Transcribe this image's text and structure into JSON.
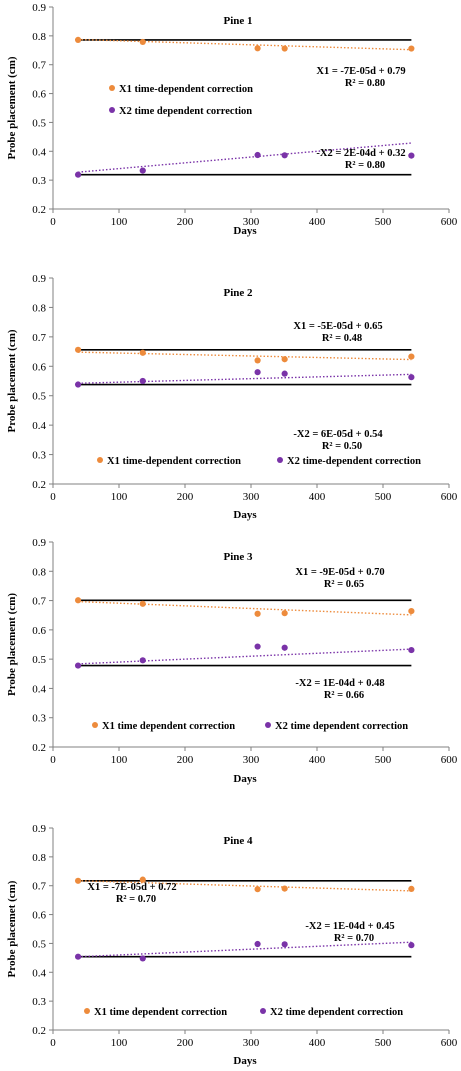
{
  "colors": {
    "x1": "#ED8B3C",
    "x2": "#7A33A8",
    "axis": "#808080",
    "ref": "#000000"
  },
  "chart_data": [
    {
      "type": "scatter",
      "title": "Pine 1",
      "xlabel": "Days",
      "ylabel": "Probe placement (cm)",
      "xlim": [
        0,
        600
      ],
      "ylim": [
        0.2,
        0.9
      ],
      "xticks": [
        "0",
        "100",
        "200",
        "300",
        "400",
        "500",
        "600"
      ],
      "yticks": [
        "0.2",
        "0.3",
        "0.4",
        "0.5",
        "0.6",
        "0.7",
        "0.8",
        "0.9"
      ],
      "x": [
        38,
        136,
        310,
        351,
        543
      ],
      "series": [
        {
          "name": "X1 time-dependent correction",
          "values": [
            0.786,
            0.779,
            0.757,
            0.756,
            0.756
          ],
          "trend": {
            "slope": -7e-05,
            "intercept": 0.79,
            "equation": "X1 = -7E-05d + 0.79",
            "r2": "R² = 0.80"
          },
          "reference": 0.786
        },
        {
          "name": "X2 time dependent correction",
          "values": [
            0.319,
            0.333,
            0.387,
            0.386,
            0.385
          ],
          "trend": {
            "slope": 0.0002,
            "intercept": 0.32,
            "equation": "-X2 = 2E-04d + 0.32",
            "r2": "R² = 0.80"
          },
          "reference": 0.319
        }
      ]
    },
    {
      "type": "scatter",
      "title": "Pine 2",
      "xlabel": "Days",
      "ylabel": "Probe placement (cm)",
      "xlim": [
        0,
        600
      ],
      "ylim": [
        0.2,
        0.9
      ],
      "xticks": [
        "0",
        "100",
        "200",
        "300",
        "400",
        "500",
        "600"
      ],
      "yticks": [
        "0.2",
        "0.3",
        "0.4",
        "0.5",
        "0.6",
        "0.7",
        "0.8",
        "0.9"
      ],
      "x": [
        38,
        136,
        310,
        351,
        543
      ],
      "series": [
        {
          "name": "X1 time-dependent correction",
          "values": [
            0.656,
            0.646,
            0.62,
            0.624,
            0.633
          ],
          "trend": {
            "slope": -5e-05,
            "intercept": 0.65,
            "equation": "X1 = -5E-05d + 0.65",
            "r2": "R² = 0.48"
          },
          "reference": 0.656
        },
        {
          "name": "X2 time-dependent correction",
          "values": [
            0.538,
            0.55,
            0.58,
            0.575,
            0.563
          ],
          "trend": {
            "slope": 6e-05,
            "intercept": 0.54,
            "equation": "-X2 = 6E-05d + 0.54",
            "r2": "R² = 0.50"
          },
          "reference": 0.538
        }
      ]
    },
    {
      "type": "scatter",
      "title": "Pine 3",
      "xlabel": "Days",
      "ylabel": "Probe placement (cm)",
      "xlim": [
        0,
        600
      ],
      "ylim": [
        0.2,
        0.9
      ],
      "xticks": [
        "0",
        "100",
        "200",
        "300",
        "400",
        "500",
        "600"
      ],
      "yticks": [
        "0.2",
        "0.3",
        "0.4",
        "0.5",
        "0.6",
        "0.7",
        "0.8",
        "0.9"
      ],
      "x": [
        38,
        136,
        310,
        351,
        543
      ],
      "series": [
        {
          "name": "X1 time dependent correction",
          "values": [
            0.701,
            0.689,
            0.655,
            0.657,
            0.664
          ],
          "trend": {
            "slope": -9e-05,
            "intercept": 0.7,
            "equation": "X1 = -9E-05d + 0.70",
            "r2": "R² = 0.65"
          },
          "reference": 0.701
        },
        {
          "name": "X2 time dependent correction",
          "values": [
            0.478,
            0.496,
            0.543,
            0.539,
            0.531
          ],
          "trend": {
            "slope": 0.0001,
            "intercept": 0.48,
            "equation": "-X2 = 1E-04d + 0.48",
            "r2": "R² = 0.66"
          },
          "reference": 0.478
        }
      ]
    },
    {
      "type": "scatter",
      "title": "Pine 4",
      "xlabel": "Days",
      "ylabel": "Probe placemet (cm)",
      "xlim": [
        0,
        600
      ],
      "ylim": [
        0.2,
        0.9
      ],
      "xticks": [
        "0",
        "100",
        "200",
        "300",
        "400",
        "500",
        "600"
      ],
      "yticks": [
        "0.2",
        "0.3",
        "0.4",
        "0.5",
        "0.6",
        "0.7",
        "0.8",
        "0.9"
      ],
      "x": [
        38,
        136,
        310,
        351,
        543
      ],
      "series": [
        {
          "name": "X1 time dependent correction",
          "values": [
            0.717,
            0.721,
            0.688,
            0.69,
            0.689
          ],
          "trend": {
            "slope": -7e-05,
            "intercept": 0.72,
            "equation": "X1 = -7E-05d + 0.72",
            "r2": "R² = 0.70"
          },
          "reference": 0.717
        },
        {
          "name": "X2 time dependent correction",
          "values": [
            0.454,
            0.448,
            0.498,
            0.497,
            0.494
          ],
          "trend": {
            "slope": 0.0001,
            "intercept": 0.45,
            "equation": "-X2 = 1E-04d + 0.45",
            "r2": "R² = 0.70"
          },
          "reference": 0.454
        }
      ]
    }
  ]
}
